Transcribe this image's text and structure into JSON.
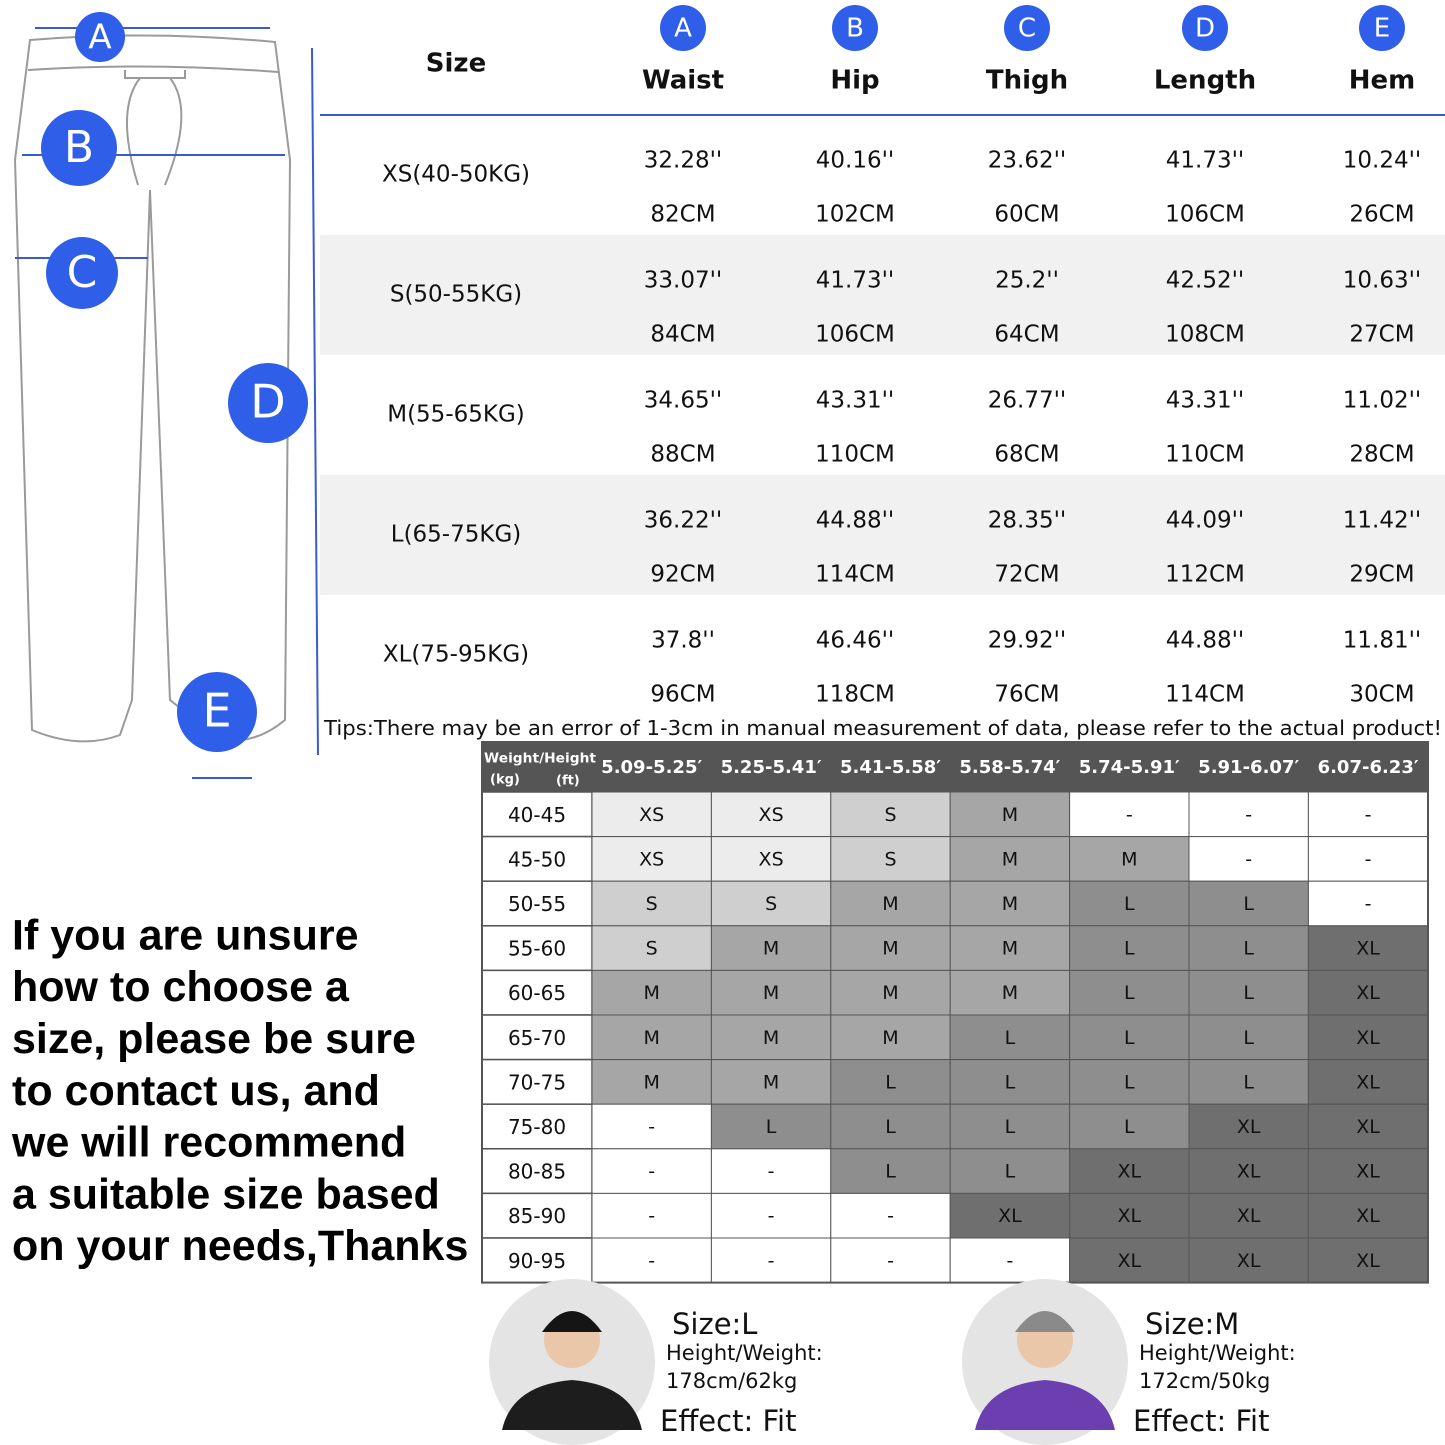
{
  "diagram": {
    "letters": [
      "A",
      "B",
      "C",
      "D",
      "E"
    ]
  },
  "size_table": {
    "header": "Size",
    "columns": [
      {
        "letter": "A",
        "name": "Waist"
      },
      {
        "letter": "B",
        "name": "Hip"
      },
      {
        "letter": "C",
        "name": "Thigh"
      },
      {
        "letter": "D",
        "name": "Length"
      },
      {
        "letter": "E",
        "name": "Hem"
      }
    ],
    "rows": [
      {
        "size": "XS(40-50KG)",
        "inches": [
          "32.28''",
          "40.16''",
          "23.62''",
          "41.73''",
          "10.24''"
        ],
        "cm": [
          "82CM",
          "102CM",
          "60CM",
          "106CM",
          "26CM"
        ]
      },
      {
        "size": "S(50-55KG)",
        "inches": [
          "33.07''",
          "41.73''",
          "25.2''",
          "42.52''",
          "10.63''"
        ],
        "cm": [
          "84CM",
          "106CM",
          "64CM",
          "108CM",
          "27CM"
        ]
      },
      {
        "size": "M(55-65KG)",
        "inches": [
          "34.65''",
          "43.31''",
          "26.77''",
          "43.31''",
          "11.02''"
        ],
        "cm": [
          "88CM",
          "110CM",
          "68CM",
          "110CM",
          "28CM"
        ]
      },
      {
        "size": "L(65-75KG)",
        "inches": [
          "36.22''",
          "44.88''",
          "28.35''",
          "44.09''",
          "11.42''"
        ],
        "cm": [
          "92CM",
          "114CM",
          "72CM",
          "112CM",
          "29CM"
        ]
      },
      {
        "size": "XL(75-95KG)",
        "inches": [
          "37.8''",
          "46.46''",
          "29.92''",
          "44.88''",
          "11.81''"
        ],
        "cm": [
          "96CM",
          "118CM",
          "76CM",
          "114CM",
          "30CM"
        ]
      }
    ],
    "tips": "Tips:There may be an error of 1-3cm in manual measurement of data, please refer to the actual product!"
  },
  "recommend_table": {
    "corner": [
      "Weight/Height",
      "(kg)",
      "(ft)"
    ],
    "heights": [
      "5.09-5.25′",
      "5.25-5.41′",
      "5.41-5.58′",
      "5.58-5.74′",
      "5.74-5.91′",
      "5.91-6.07′",
      "6.07-6.23′"
    ],
    "rows": [
      {
        "weight": "40-45",
        "cells": [
          "XS",
          "XS",
          "S",
          "M",
          "-",
          "-",
          "-"
        ]
      },
      {
        "weight": "45-50",
        "cells": [
          "XS",
          "XS",
          "S",
          "M",
          "M",
          "-",
          "-"
        ]
      },
      {
        "weight": "50-55",
        "cells": [
          "S",
          "S",
          "M",
          "M",
          "L",
          "L",
          "-"
        ]
      },
      {
        "weight": "55-60",
        "cells": [
          "S",
          "M",
          "M",
          "M",
          "L",
          "L",
          "XL"
        ]
      },
      {
        "weight": "60-65",
        "cells": [
          "M",
          "M",
          "M",
          "M",
          "L",
          "L",
          "XL"
        ]
      },
      {
        "weight": "65-70",
        "cells": [
          "M",
          "M",
          "M",
          "L",
          "L",
          "L",
          "XL"
        ]
      },
      {
        "weight": "70-75",
        "cells": [
          "M",
          "M",
          "L",
          "L",
          "L",
          "L",
          "XL"
        ]
      },
      {
        "weight": "75-80",
        "cells": [
          "-",
          "L",
          "L",
          "L",
          "L",
          "XL",
          "XL"
        ]
      },
      {
        "weight": "80-85",
        "cells": [
          "-",
          "-",
          "L",
          "L",
          "XL",
          "XL",
          "XL"
        ]
      },
      {
        "weight": "85-90",
        "cells": [
          "-",
          "-",
          "-",
          "XL",
          "XL",
          "XL",
          "XL"
        ]
      },
      {
        "weight": "90-95",
        "cells": [
          "-",
          "-",
          "-",
          "-",
          "XL",
          "XL",
          "XL"
        ]
      }
    ],
    "cell_shades": {
      "XS": "#ececec",
      "S": "#cfcfcf",
      "M": "#a6a6a6",
      "L": "#8e8e8e",
      "XL": "#6f6f6f",
      "-": "#ffffff"
    }
  },
  "note": {
    "lines": [
      "If you are unsure",
      "how to choose a",
      "size, please be sure",
      "to contact us, and",
      "we will recommend",
      "a suitable size based",
      "on your needs,Thanks"
    ]
  },
  "models": [
    {
      "size": "Size:L",
      "hw_label": "Height/Weight:",
      "hw_value": "178cm/62kg",
      "effect": "Effect: Fit"
    },
    {
      "size": "Size:M",
      "hw_label": "Height/Weight:",
      "hw_value": "172cm/50kg",
      "effect": "Effect: Fit"
    }
  ]
}
